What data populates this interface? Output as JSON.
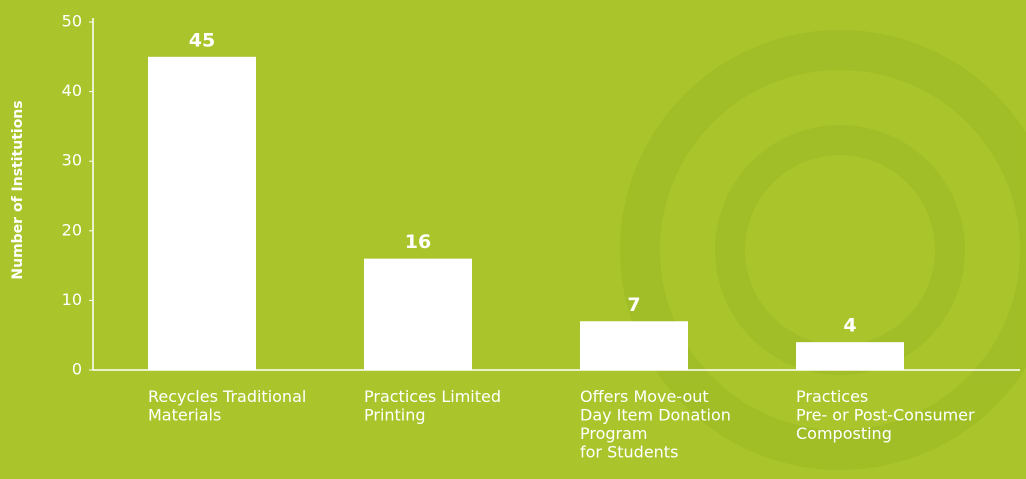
{
  "chart_data": {
    "type": "bar",
    "y_label": "Number of Institutions",
    "categories": [
      "Recycles Traditional\nMaterials",
      "Practices Limited\nPrinting",
      "Offers Move-out\nDay Item Donation\nProgram\nfor Students",
      "Practices\nPre- or Post-Consumer\nComposting"
    ],
    "values": [
      45,
      16,
      7,
      4
    ],
    "color": "#ffffff",
    "ylim": [
      0,
      50
    ],
    "yticks": [
      0,
      10,
      20,
      30,
      40,
      50
    ],
    "grid": false
  }
}
